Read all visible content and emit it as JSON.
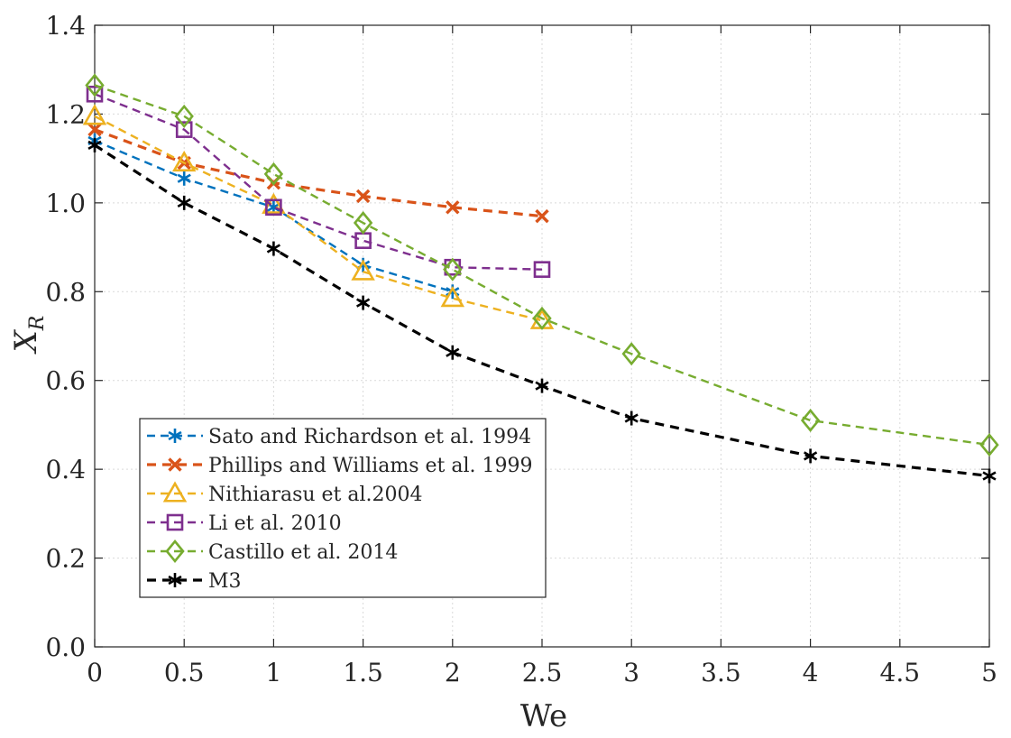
{
  "chart_data": {
    "type": "line",
    "xlabel": "We",
    "ylabel": "X",
    "ylabel_subscript": "R",
    "xlim": [
      0,
      5
    ],
    "ylim": [
      0,
      1.4
    ],
    "xticks": [
      0,
      0.5,
      1,
      1.5,
      2,
      2.5,
      3,
      3.5,
      4,
      4.5,
      5
    ],
    "xtick_labels": [
      "0",
      "0.5",
      "1",
      "1.5",
      "2",
      "2.5",
      "3",
      "3.5",
      "4",
      "4.5",
      "5"
    ],
    "yticks": [
      0,
      0.2,
      0.4,
      0.6,
      0.8,
      1.0,
      1.2,
      1.4
    ],
    "ytick_labels": [
      "0.0",
      "0.2",
      "0.4",
      "0.6",
      "0.8",
      "1.0",
      "1.2",
      "1.4"
    ],
    "grid": true,
    "legend_position": "bottom-left",
    "series": [
      {
        "name": "Sato and Richardson et al. 1994",
        "color": "#0072BD",
        "marker": "asterisk",
        "line": "dashed",
        "x": [
          0,
          0.5,
          1,
          1.5,
          2
        ],
        "y": [
          1.14,
          1.055,
          0.99,
          0.86,
          0.8
        ]
      },
      {
        "name": "Phillips and Williams et al. 1999",
        "color": "#D95319",
        "marker": "cross",
        "line": "dashed-bold",
        "x": [
          0,
          0.5,
          1,
          1.5,
          2,
          2.5
        ],
        "y": [
          1.165,
          1.09,
          1.045,
          1.015,
          0.99,
          0.97
        ]
      },
      {
        "name": "Nithiarasu et al.2004",
        "color": "#EDB120",
        "marker": "triangle",
        "line": "dashed",
        "x": [
          0,
          0.5,
          1,
          1.5,
          2,
          2.5
        ],
        "y": [
          1.195,
          1.09,
          0.995,
          0.845,
          0.785,
          0.735
        ]
      },
      {
        "name": "Li et al. 2010",
        "color": "#7E2F8E",
        "marker": "square",
        "line": "dashed",
        "x": [
          0,
          0.5,
          1,
          1.5,
          2,
          2.5
        ],
        "y": [
          1.245,
          1.165,
          0.99,
          0.915,
          0.855,
          0.85
        ]
      },
      {
        "name": "Castillo et al. 2014",
        "color": "#77AC30",
        "marker": "diamond",
        "line": "dashed",
        "x": [
          0,
          0.5,
          1,
          1.5,
          2,
          2.5,
          3,
          4,
          5
        ],
        "y": [
          1.265,
          1.195,
          1.065,
          0.955,
          0.85,
          0.74,
          0.66,
          0.51,
          0.455
        ]
      },
      {
        "name": "M3",
        "color": "#000000",
        "marker": "asterisk",
        "line": "dashed-bold",
        "x": [
          0,
          0.5,
          1,
          1.5,
          2,
          2.5,
          3,
          4,
          5
        ],
        "y": [
          1.13,
          1.0,
          0.897,
          0.775,
          0.663,
          0.588,
          0.515,
          0.43,
          0.385
        ]
      }
    ]
  }
}
